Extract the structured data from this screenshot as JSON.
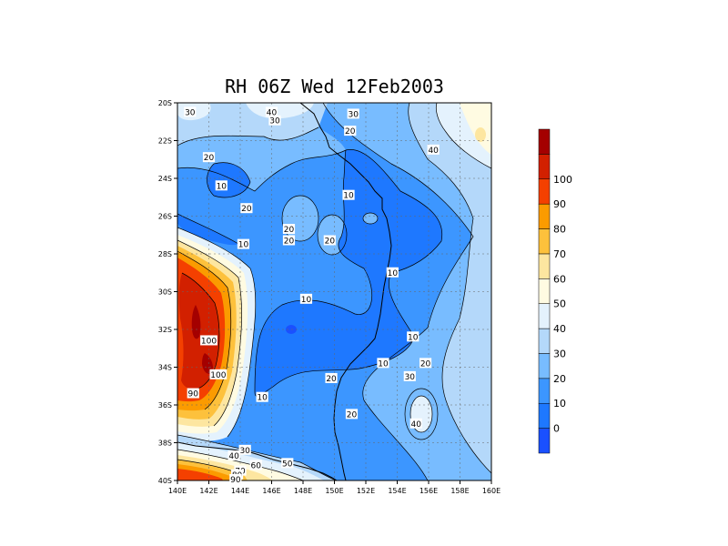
{
  "title": "RH 06Z Wed 12Feb2003",
  "chart_data": {
    "type": "heatmap",
    "variable": "RH",
    "xlim": [
      140,
      160
    ],
    "ylim": [
      -40,
      -20
    ],
    "x_ticks": [
      "140E",
      "142E",
      "144E",
      "146E",
      "148E",
      "150E",
      "152E",
      "154E",
      "156E",
      "158E",
      "160E"
    ],
    "y_ticks": [
      "20S",
      "22S",
      "24S",
      "26S",
      "28S",
      "30S",
      "32S",
      "34S",
      "36S",
      "38S",
      "40S"
    ],
    "grid": true,
    "colorbar": {
      "placement": "right",
      "levels": [
        {
          "label": "",
          "color": "#1a50ff"
        },
        {
          "label": "0",
          "color": "#1e78ff"
        },
        {
          "label": "10",
          "color": "#3c96ff"
        },
        {
          "label": "20",
          "color": "#78bcff"
        },
        {
          "label": "30",
          "color": "#b4d8fa"
        },
        {
          "label": "40",
          "color": "#e4f2fd"
        },
        {
          "label": "50",
          "color": "#fffbe2"
        },
        {
          "label": "60",
          "color": "#fde6a0"
        },
        {
          "label": "70",
          "color": "#fdc13c"
        },
        {
          "label": "80",
          "color": "#fb9b00"
        },
        {
          "label": "90",
          "color": "#f44000"
        },
        {
          "label": "100",
          "color": "#d22000"
        },
        {
          "label": "",
          "color": "#a40000"
        }
      ]
    },
    "contour_labels": [
      {
        "text": "30",
        "lon": 140.8,
        "lat": -20.5
      },
      {
        "text": "40",
        "lon": 146.0,
        "lat": -20.5
      },
      {
        "text": "30",
        "lon": 146.2,
        "lat": -20.95
      },
      {
        "text": "30",
        "lon": 151.2,
        "lat": -20.6
      },
      {
        "text": "20",
        "lon": 151.0,
        "lat": -21.5
      },
      {
        "text": "40",
        "lon": 156.3,
        "lat": -22.5
      },
      {
        "text": "20",
        "lon": 142.0,
        "lat": -22.9
      },
      {
        "text": "10",
        "lon": 142.8,
        "lat": -24.4
      },
      {
        "text": "10",
        "lon": 150.9,
        "lat": -24.9
      },
      {
        "text": "20",
        "lon": 144.4,
        "lat": -25.6
      },
      {
        "text": "20",
        "lon": 147.1,
        "lat": -26.7
      },
      {
        "text": "20",
        "lon": 147.1,
        "lat": -27.3
      },
      {
        "text": "20",
        "lon": 149.7,
        "lat": -27.3
      },
      {
        "text": "10",
        "lon": 144.2,
        "lat": -27.5
      },
      {
        "text": "10",
        "lon": 153.7,
        "lat": -29.0
      },
      {
        "text": "10",
        "lon": 148.2,
        "lat": -30.4
      },
      {
        "text": "100",
        "lon": 142.0,
        "lat": -32.6
      },
      {
        "text": "100",
        "lon": 142.6,
        "lat": -34.4
      },
      {
        "text": "90",
        "lon": 141.0,
        "lat": -35.4
      },
      {
        "text": "10",
        "lon": 145.4,
        "lat": -35.6
      },
      {
        "text": "10",
        "lon": 155.0,
        "lat": -32.4
      },
      {
        "text": "10",
        "lon": 153.1,
        "lat": -33.8
      },
      {
        "text": "20",
        "lon": 155.8,
        "lat": -33.8
      },
      {
        "text": "30",
        "lon": 154.8,
        "lat": -34.5
      },
      {
        "text": "20",
        "lon": 149.8,
        "lat": -34.6
      },
      {
        "text": "20",
        "lon": 151.1,
        "lat": -36.5
      },
      {
        "text": "40",
        "lon": 155.2,
        "lat": -37.0
      },
      {
        "text": "30",
        "lon": 144.3,
        "lat": -38.4
      },
      {
        "text": "40",
        "lon": 143.6,
        "lat": -38.7
      },
      {
        "text": "50",
        "lon": 147.0,
        "lat": -39.1
      },
      {
        "text": "60",
        "lon": 145.0,
        "lat": -39.2
      },
      {
        "text": "70",
        "lon": 144.0,
        "lat": -39.5
      },
      {
        "text": "80",
        "lon": 143.8,
        "lat": -39.7
      },
      {
        "text": "90",
        "lon": 143.7,
        "lat": -39.95
      }
    ]
  }
}
